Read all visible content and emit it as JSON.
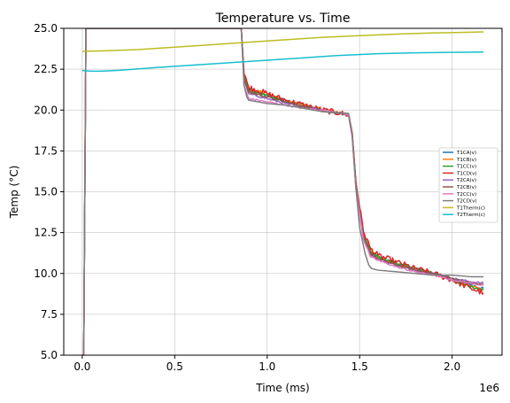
{
  "chart_data": {
    "type": "line",
    "title": "Temperature vs. Time",
    "xlabel": "Time (ms)",
    "ylabel": "Temp (°C)",
    "x_offset_label": "1e6",
    "xlim": [
      -100000,
      2270000
    ],
    "ylim": [
      5.0,
      25.0
    ],
    "x_ticks": [
      0,
      500000,
      1000000,
      1500000,
      2000000
    ],
    "x_tick_labels": [
      "0.0",
      "0.5",
      "1.0",
      "1.5",
      "2.0"
    ],
    "y_ticks": [
      5.0,
      7.5,
      10.0,
      12.5,
      15.0,
      17.5,
      20.0,
      22.5,
      25.0
    ],
    "y_tick_labels": [
      "5.0",
      "7.5",
      "10.0",
      "12.5",
      "15.0",
      "17.5",
      "20.0",
      "22.5",
      "25.0"
    ],
    "grid": true,
    "legend_position": "center-right",
    "series": [
      {
        "name": "T1CA(v)",
        "color": "#1f77b4",
        "x": [
          0,
          8000,
          14000,
          20000,
          26000,
          32000,
          850000,
          860000,
          875000,
          900000,
          1000000,
          1100000,
          1200000,
          1300000,
          1400000,
          1440000,
          1460000,
          1480000,
          1520000,
          1560000,
          1600000,
          1700000,
          1800000,
          1900000,
          2000000,
          2100000,
          2170000
        ],
        "y": [
          5,
          5,
          15,
          25,
          25,
          25,
          25,
          25,
          22,
          21.2,
          20.9,
          20.6,
          20.3,
          20.0,
          19.8,
          19.7,
          18.5,
          15.5,
          12.5,
          11.3,
          11.0,
          10.6,
          10.3,
          10.0,
          9.7,
          9.3,
          9.1
        ],
        "noise": 0.08
      },
      {
        "name": "T1CB(v)",
        "color": "#ff7f0e",
        "x": [
          0,
          8000,
          14000,
          20000,
          26000,
          32000,
          850000,
          860000,
          875000,
          900000,
          1000000,
          1100000,
          1200000,
          1300000,
          1400000,
          1440000,
          1460000,
          1480000,
          1520000,
          1560000,
          1600000,
          1700000,
          1800000,
          1900000,
          2000000,
          2100000,
          2170000
        ],
        "y": [
          5,
          5,
          16,
          25,
          25,
          25,
          25,
          25,
          22.1,
          21.3,
          21.0,
          20.6,
          20.3,
          20.0,
          19.8,
          19.7,
          18.5,
          15.4,
          12.5,
          11.4,
          11.0,
          10.6,
          10.3,
          10.0,
          9.6,
          9.2,
          9.0
        ],
        "noise": 0.08
      },
      {
        "name": "T1CC(v)",
        "color": "#2ca02c",
        "x": [
          0,
          8000,
          14000,
          20000,
          26000,
          32000,
          850000,
          860000,
          875000,
          900000,
          1000000,
          1100000,
          1200000,
          1300000,
          1400000,
          1440000,
          1460000,
          1480000,
          1520000,
          1560000,
          1600000,
          1700000,
          1800000,
          1900000,
          2000000,
          2100000,
          2170000
        ],
        "y": [
          5,
          5,
          15,
          25,
          25,
          25,
          25,
          25,
          22,
          21.2,
          20.9,
          20.5,
          20.2,
          20.0,
          19.8,
          19.7,
          18.5,
          15.5,
          12.4,
          11.3,
          11.0,
          10.6,
          10.3,
          10.0,
          9.6,
          9.2,
          9.0
        ],
        "noise": 0.08
      },
      {
        "name": "T1CD(v)",
        "color": "#d62728",
        "x": [
          0,
          8000,
          14000,
          20000,
          26000,
          32000,
          850000,
          860000,
          875000,
          900000,
          1000000,
          1100000,
          1200000,
          1300000,
          1400000,
          1440000,
          1460000,
          1480000,
          1520000,
          1560000,
          1600000,
          1700000,
          1800000,
          1900000,
          2000000,
          2100000,
          2170000
        ],
        "y": [
          5,
          5,
          15,
          25,
          25,
          25,
          25,
          25,
          22.2,
          21.4,
          21.0,
          20.6,
          20.3,
          20.0,
          19.8,
          19.7,
          18.6,
          15.6,
          12.6,
          11.5,
          11.1,
          10.7,
          10.3,
          10.0,
          9.6,
          9.1,
          8.8
        ],
        "noise": 0.18
      },
      {
        "name": "T2CA(v)",
        "color": "#9467bd",
        "x": [
          0,
          8000,
          14000,
          20000,
          26000,
          32000,
          850000,
          860000,
          875000,
          900000,
          1000000,
          1100000,
          1200000,
          1300000,
          1400000,
          1440000,
          1460000,
          1480000,
          1520000,
          1560000,
          1600000,
          1700000,
          1800000,
          1900000,
          2000000,
          2100000,
          2170000
        ],
        "y": [
          5,
          5,
          15,
          25,
          25,
          25,
          25,
          25,
          21.8,
          21.0,
          20.7,
          20.4,
          20.2,
          20.0,
          19.8,
          19.7,
          18.4,
          15.3,
          12.2,
          11.1,
          10.9,
          10.5,
          10.2,
          10.0,
          9.7,
          9.5,
          9.4
        ],
        "noise": 0.06
      },
      {
        "name": "T2CB(v)",
        "color": "#8c564b",
        "x": [
          0,
          8000,
          14000,
          20000,
          26000,
          32000,
          850000,
          860000,
          875000,
          900000,
          1000000,
          1100000,
          1200000,
          1300000,
          1400000,
          1440000,
          1460000,
          1480000,
          1520000,
          1560000,
          1600000,
          1700000,
          1800000,
          1900000,
          2000000,
          2100000,
          2170000
        ],
        "y": [
          5,
          5,
          15,
          25,
          25,
          25,
          25,
          25,
          21.9,
          21.1,
          20.8,
          20.5,
          20.2,
          20.0,
          19.8,
          19.7,
          18.4,
          15.3,
          12.3,
          11.2,
          10.9,
          10.5,
          10.2,
          10.0,
          9.7,
          9.4,
          9.3
        ],
        "noise": 0.06
      },
      {
        "name": "T2CC(v)",
        "color": "#e377c2",
        "x": [
          0,
          8000,
          14000,
          20000,
          26000,
          32000,
          850000,
          860000,
          875000,
          900000,
          1000000,
          1100000,
          1200000,
          1300000,
          1400000,
          1440000,
          1460000,
          1480000,
          1520000,
          1560000,
          1600000,
          1700000,
          1800000,
          1900000,
          2000000,
          2100000,
          2170000
        ],
        "y": [
          5,
          5,
          15,
          25,
          25,
          25,
          25,
          25,
          21.5,
          20.7,
          20.5,
          20.3,
          20.1,
          20.0,
          19.8,
          19.7,
          18.3,
          15.2,
          12.1,
          11.0,
          10.8,
          10.4,
          10.1,
          9.9,
          9.6,
          9.4,
          9.3
        ],
        "noise": 0.05
      },
      {
        "name": "T2CD(v)",
        "color": "#7f7f7f",
        "x": [
          0,
          8000,
          14000,
          20000,
          26000,
          32000,
          850000,
          860000,
          875000,
          890000,
          900000,
          1000000,
          1100000,
          1200000,
          1300000,
          1400000,
          1440000,
          1460000,
          1480000,
          1500000,
          1530000,
          1550000,
          1565000,
          1600000,
          1700000,
          1800000,
          1900000,
          2000000,
          2100000,
          2170000
        ],
        "y": [
          5,
          5,
          15,
          25,
          25,
          25,
          25,
          25,
          21.5,
          20.8,
          20.6,
          20.4,
          20.3,
          20.1,
          19.9,
          19.8,
          19.8,
          18.5,
          15.2,
          12.8,
          11.2,
          10.5,
          10.3,
          10.2,
          10.1,
          10.0,
          9.9,
          9.9,
          9.8,
          9.8
        ],
        "noise": 0.0
      },
      {
        "name": "T1Therm(c)",
        "color": "#bcbd22",
        "x": [
          0,
          100000,
          300000,
          500000,
          700000,
          900000,
          1100000,
          1300000,
          1500000,
          1700000,
          1900000,
          2100000,
          2170000
        ],
        "y": [
          23.6,
          23.62,
          23.7,
          23.85,
          24.0,
          24.15,
          24.3,
          24.45,
          24.55,
          24.65,
          24.72,
          24.76,
          24.78
        ],
        "noise": 0.0
      },
      {
        "name": "T2Therm(c)",
        "color": "#17becf",
        "x": [
          0,
          50000,
          100000,
          200000,
          400000,
          600000,
          800000,
          1000000,
          1200000,
          1400000,
          1600000,
          1800000,
          2000000,
          2170000
        ],
        "y": [
          22.42,
          22.38,
          22.38,
          22.43,
          22.6,
          22.75,
          22.9,
          23.05,
          23.2,
          23.35,
          23.45,
          23.5,
          23.53,
          23.55
        ],
        "noise": 0.0
      }
    ]
  }
}
